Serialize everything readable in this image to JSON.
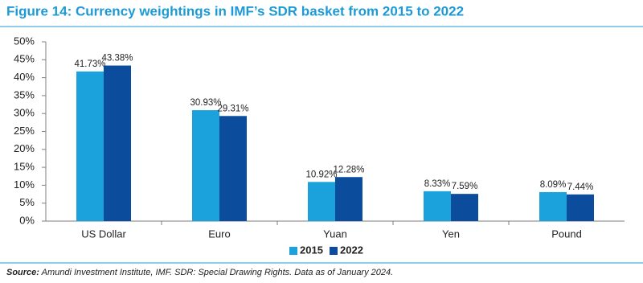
{
  "chart_data": {
    "type": "bar",
    "title": "Figure 14: Currency weightings in IMF’s SDR basket from 2015 to 2022",
    "categories": [
      "US Dollar",
      "Euro",
      "Yuan",
      "Yen",
      "Pound"
    ],
    "series": [
      {
        "name": "2015",
        "color": "#1ba1dc",
        "values": [
          41.73,
          30.93,
          10.92,
          8.33,
          8.09
        ],
        "value_labels": [
          "41.73%",
          "30.93%",
          "10.92%",
          "8.33%",
          "8.09%"
        ]
      },
      {
        "name": "2022",
        "color": "#0b4d9c",
        "values": [
          43.38,
          29.31,
          12.28,
          7.59,
          7.44
        ],
        "value_labels": [
          "43.38%",
          "29.31%",
          "12.28%",
          "7.59%",
          "7.44%"
        ]
      }
    ],
    "ylim": [
      0,
      50
    ],
    "yticks": [
      {
        "value": 0,
        "label": "0%"
      },
      {
        "value": 5,
        "label": "5%"
      },
      {
        "value": 10,
        "label": "10%"
      },
      {
        "value": 15,
        "label": "15%"
      },
      {
        "value": 20,
        "label": "20%"
      },
      {
        "value": 25,
        "label": "25%"
      },
      {
        "value": 30,
        "label": "30%"
      },
      {
        "value": 35,
        "label": "35%"
      },
      {
        "value": 40,
        "label": "40%"
      },
      {
        "value": 45,
        "label": "45%"
      },
      {
        "value": 50,
        "label": "50%"
      }
    ],
    "grid": false,
    "legend": "bottom",
    "source_label": "Source:",
    "source_text": "Amundi Investment Institute, IMF. SDR: Special Drawing Rights. Data as of January 2024."
  }
}
